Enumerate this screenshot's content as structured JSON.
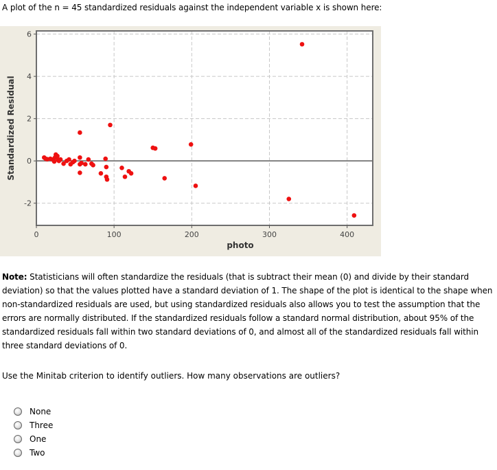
{
  "intro": "A plot of the n = 45 standardized residuals against the independent variable x is shown here:",
  "chart_data": {
    "type": "scatter",
    "title": "",
    "xlabel": "photo",
    "ylabel": "Standardized Residual",
    "xlim": [
      0,
      433
    ],
    "ylim": [
      -3.05,
      6.15
    ],
    "xticks": [
      0,
      100,
      200,
      300,
      400
    ],
    "yticks": [
      -2,
      0,
      2,
      4,
      6
    ],
    "grid": true,
    "reference_line_y": 0,
    "marker_color": "#ee1111",
    "points": [
      [
        10,
        0.16
      ],
      [
        12,
        0.1
      ],
      [
        14,
        0.08
      ],
      [
        18,
        0.1
      ],
      [
        21,
        0.07
      ],
      [
        23,
        -0.03
      ],
      [
        24,
        0.16
      ],
      [
        25,
        0.3
      ],
      [
        27,
        0.23
      ],
      [
        28,
        0.05
      ],
      [
        31,
        0.07
      ],
      [
        35,
        -0.13
      ],
      [
        39,
        0.0
      ],
      [
        42,
        0.07
      ],
      [
        44,
        -0.16
      ],
      [
        49,
        0.0
      ],
      [
        56,
        0.16
      ],
      [
        56,
        -0.16
      ],
      [
        56,
        -0.56
      ],
      [
        58,
        -0.1
      ],
      [
        63,
        -0.16
      ],
      [
        67,
        0.07
      ],
      [
        71,
        -0.13
      ],
      [
        73,
        -0.2
      ],
      [
        83,
        -0.59
      ],
      [
        89,
        0.1
      ],
      [
        90,
        -0.29
      ],
      [
        90,
        -0.75
      ],
      [
        91,
        -0.88
      ],
      [
        110,
        -0.33
      ],
      [
        114,
        -0.75
      ],
      [
        119,
        -0.49
      ],
      [
        122,
        -0.59
      ],
      [
        150,
        0.62
      ],
      [
        153,
        0.59
      ],
      [
        165,
        -0.82
      ],
      [
        56,
        1.34
      ],
      [
        95,
        1.7
      ],
      [
        199,
        0.78
      ],
      [
        205,
        -1.18
      ],
      [
        342,
        5.52
      ],
      [
        325,
        -1.8
      ],
      [
        409,
        -2.58
      ],
      [
        29,
        0.0
      ],
      [
        47,
        -0.06
      ]
    ]
  },
  "note": {
    "label": "Note:",
    "text": " Statisticians will often standardize the residuals (that is subtract their mean (0) and divide by their standard deviation) so that the values plotted have a standard deviation of 1. The shape of the plot is identical to the shape when non-standardized residuals are used, but using standardized residuals also allows you to test the assumption that the errors are normally distributed. If the standardized residuals follow a standard normal distribution, about 95% of the standardized residuals fall within two standard deviations of 0, and almost all of the standardized residuals fall within three standard deviations of 0."
  },
  "question": "Use the Minitab criterion to identify outliers. How many observations are outliers?",
  "options": [
    {
      "label": "None"
    },
    {
      "label": "Three"
    },
    {
      "label": "One"
    },
    {
      "label": "Two"
    }
  ]
}
